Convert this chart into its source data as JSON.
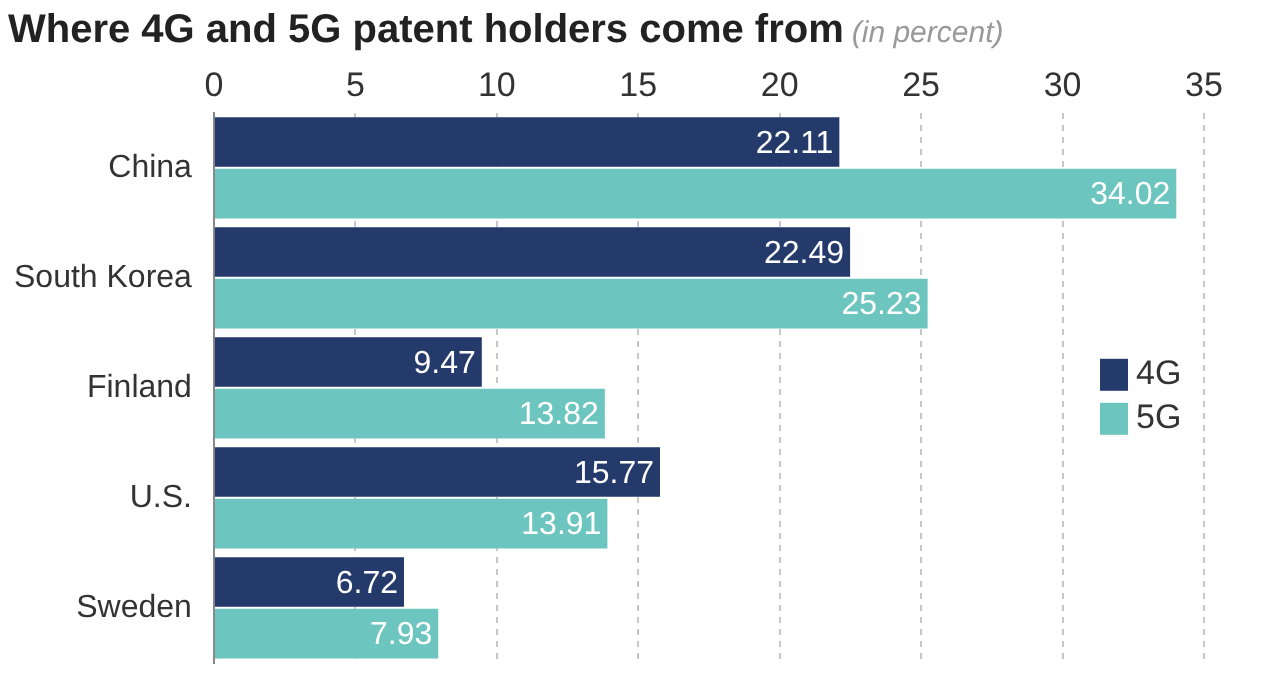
{
  "chart_data": {
    "type": "bar",
    "title": "Where 4G and 5G patent holders come from",
    "subtitle": "(in percent)",
    "orientation": "horizontal",
    "categories": [
      "China",
      "South Korea",
      "Finland",
      "U.S.",
      "Sweden"
    ],
    "series": [
      {
        "name": "4G",
        "color": "#243a6b",
        "values": [
          22.11,
          22.49,
          9.47,
          15.77,
          6.72
        ]
      },
      {
        "name": "5G",
        "color": "#6cc5bf",
        "values": [
          34.02,
          25.23,
          13.82,
          13.91,
          7.93
        ]
      }
    ],
    "xlim": [
      0,
      35
    ],
    "xticks": [
      0,
      5,
      10,
      15,
      20,
      25,
      30,
      35
    ],
    "grid": "x",
    "legend": "bottom right",
    "data_labels": true
  }
}
